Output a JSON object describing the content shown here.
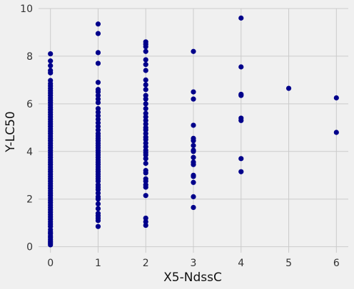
{
  "chart_data": {
    "type": "scatter",
    "title": "",
    "xlabel": "X5-NdssC",
    "ylabel": "Y-LC50",
    "xlim": [
      -0.25,
      6.25
    ],
    "ylim": [
      -0.25,
      10.0
    ],
    "xticks": [
      0,
      1,
      2,
      3,
      4,
      5,
      6
    ],
    "yticks": [
      0,
      2,
      4,
      6,
      8,
      10
    ],
    "grid": true,
    "colors": {
      "marker": "#00008b",
      "background": "#f0f0f0",
      "grid": "#cbcbcb"
    },
    "series": [
      {
        "points": [
          [
            0,
            0.08
          ],
          [
            0,
            0.15
          ],
          [
            0,
            0.22
          ],
          [
            0,
            0.3
          ],
          [
            0,
            0.38
          ],
          [
            0,
            0.45
          ],
          [
            0,
            0.55
          ],
          [
            0,
            0.62
          ],
          [
            0,
            0.72
          ],
          [
            0,
            0.85
          ],
          [
            0,
            0.95
          ],
          [
            0,
            1.05
          ],
          [
            0,
            1.15
          ],
          [
            0,
            1.25
          ],
          [
            0,
            1.35
          ],
          [
            0,
            1.45
          ],
          [
            0,
            1.55
          ],
          [
            0,
            1.65
          ],
          [
            0,
            1.75
          ],
          [
            0,
            1.85
          ],
          [
            0,
            1.95
          ],
          [
            0,
            2.05
          ],
          [
            0,
            2.15
          ],
          [
            0,
            2.25
          ],
          [
            0,
            2.35
          ],
          [
            0,
            2.45
          ],
          [
            0,
            2.55
          ],
          [
            0,
            2.65
          ],
          [
            0,
            2.75
          ],
          [
            0,
            2.85
          ],
          [
            0,
            2.95
          ],
          [
            0,
            3.05
          ],
          [
            0,
            3.15
          ],
          [
            0,
            3.25
          ],
          [
            0,
            3.35
          ],
          [
            0,
            3.45
          ],
          [
            0,
            3.55
          ],
          [
            0,
            3.65
          ],
          [
            0,
            3.75
          ],
          [
            0,
            3.85
          ],
          [
            0,
            3.95
          ],
          [
            0,
            4.05
          ],
          [
            0,
            4.15
          ],
          [
            0,
            4.25
          ],
          [
            0,
            4.35
          ],
          [
            0,
            4.45
          ],
          [
            0,
            4.55
          ],
          [
            0,
            4.65
          ],
          [
            0,
            4.75
          ],
          [
            0,
            4.85
          ],
          [
            0,
            4.95
          ],
          [
            0,
            5.05
          ],
          [
            0,
            5.15
          ],
          [
            0,
            5.25
          ],
          [
            0,
            5.35
          ],
          [
            0,
            5.45
          ],
          [
            0,
            5.55
          ],
          [
            0,
            5.65
          ],
          [
            0,
            5.75
          ],
          [
            0,
            5.85
          ],
          [
            0,
            5.95
          ],
          [
            0,
            6.05
          ],
          [
            0,
            6.15
          ],
          [
            0,
            6.25
          ],
          [
            0,
            6.35
          ],
          [
            0,
            6.45
          ],
          [
            0,
            6.55
          ],
          [
            0,
            6.65
          ],
          [
            0,
            6.75
          ],
          [
            0,
            6.85
          ],
          [
            0,
            6.98
          ],
          [
            0,
            7.3
          ],
          [
            0,
            7.4
          ],
          [
            0,
            7.6
          ],
          [
            0,
            7.8
          ],
          [
            0,
            8.1
          ],
          [
            1,
            0.85
          ],
          [
            1,
            1.1
          ],
          [
            1,
            1.2
          ],
          [
            1,
            1.3
          ],
          [
            1,
            1.4
          ],
          [
            1,
            1.6
          ],
          [
            1,
            1.8
          ],
          [
            1,
            2.0
          ],
          [
            1,
            2.1
          ],
          [
            1,
            2.25
          ],
          [
            1,
            2.4
          ],
          [
            1,
            2.5
          ],
          [
            1,
            2.6
          ],
          [
            1,
            2.75
          ],
          [
            1,
            2.85
          ],
          [
            1,
            2.95
          ],
          [
            1,
            3.05
          ],
          [
            1,
            3.15
          ],
          [
            1,
            3.25
          ],
          [
            1,
            3.35
          ],
          [
            1,
            3.45
          ],
          [
            1,
            3.55
          ],
          [
            1,
            3.65
          ],
          [
            1,
            3.75
          ],
          [
            1,
            3.85
          ],
          [
            1,
            3.95
          ],
          [
            1,
            4.05
          ],
          [
            1,
            4.15
          ],
          [
            1,
            4.25
          ],
          [
            1,
            4.35
          ],
          [
            1,
            4.45
          ],
          [
            1,
            4.55
          ],
          [
            1,
            4.65
          ],
          [
            1,
            4.75
          ],
          [
            1,
            4.9
          ],
          [
            1,
            5.05
          ],
          [
            1,
            5.2
          ],
          [
            1,
            5.35
          ],
          [
            1,
            5.5
          ],
          [
            1,
            5.65
          ],
          [
            1,
            5.8
          ],
          [
            1,
            6.05
          ],
          [
            1,
            6.2
          ],
          [
            1,
            6.35
          ],
          [
            1,
            6.5
          ],
          [
            1,
            6.6
          ],
          [
            1,
            6.9
          ],
          [
            1,
            7.7
          ],
          [
            1,
            8.15
          ],
          [
            1,
            8.95
          ],
          [
            1,
            9.35
          ],
          [
            2,
            0.9
          ],
          [
            2,
            1.05
          ],
          [
            2,
            1.2
          ],
          [
            2,
            2.15
          ],
          [
            2,
            2.5
          ],
          [
            2,
            2.6
          ],
          [
            2,
            2.75
          ],
          [
            2,
            2.85
          ],
          [
            2,
            3.1
          ],
          [
            2,
            3.2
          ],
          [
            2,
            3.5
          ],
          [
            2,
            3.7
          ],
          [
            2,
            3.85
          ],
          [
            2,
            3.95
          ],
          [
            2,
            4.05
          ],
          [
            2,
            4.2
          ],
          [
            2,
            4.35
          ],
          [
            2,
            4.5
          ],
          [
            2,
            4.6
          ],
          [
            2,
            4.75
          ],
          [
            2,
            4.9
          ],
          [
            2,
            5.0
          ],
          [
            2,
            5.15
          ],
          [
            2,
            5.3
          ],
          [
            2,
            5.45
          ],
          [
            2,
            5.6
          ],
          [
            2,
            5.8
          ],
          [
            2,
            6.0
          ],
          [
            2,
            6.2
          ],
          [
            2,
            6.35
          ],
          [
            2,
            6.6
          ],
          [
            2,
            6.8
          ],
          [
            2,
            7.0
          ],
          [
            2,
            7.4
          ],
          [
            2,
            7.65
          ],
          [
            2,
            7.85
          ],
          [
            2,
            8.2
          ],
          [
            2,
            8.4
          ],
          [
            2,
            8.5
          ],
          [
            2,
            8.6
          ],
          [
            3,
            1.65
          ],
          [
            3,
            2.1
          ],
          [
            3,
            2.7
          ],
          [
            3,
            2.95
          ],
          [
            3,
            3.0
          ],
          [
            3,
            3.45
          ],
          [
            3,
            3.55
          ],
          [
            3,
            3.75
          ],
          [
            3,
            4.0
          ],
          [
            3,
            4.05
          ],
          [
            3,
            4.25
          ],
          [
            3,
            4.45
          ],
          [
            3,
            4.55
          ],
          [
            3,
            5.1
          ],
          [
            3,
            6.2
          ],
          [
            3,
            6.5
          ],
          [
            3,
            8.2
          ],
          [
            4,
            3.15
          ],
          [
            4,
            3.7
          ],
          [
            4,
            5.3
          ],
          [
            4,
            5.4
          ],
          [
            4,
            6.35
          ],
          [
            4,
            6.4
          ],
          [
            4,
            7.55
          ],
          [
            4,
            9.6
          ],
          [
            5,
            6.65
          ],
          [
            6,
            4.8
          ],
          [
            6,
            6.25
          ]
        ]
      }
    ]
  }
}
